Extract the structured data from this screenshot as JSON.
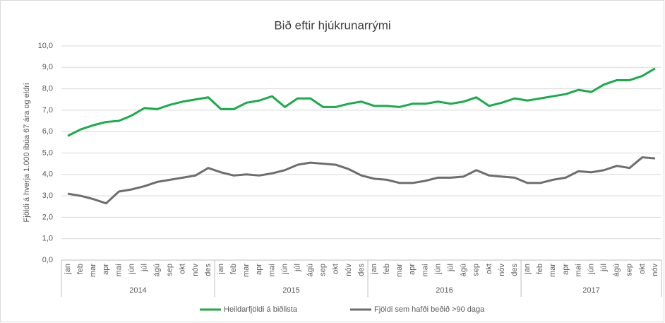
{
  "chart_data": {
    "type": "line",
    "title": "Bið eftir hjúkrunarrými",
    "y_label": "Fjöldi á hverja 1.000 íbúa 67 ára og eldri",
    "category_groups": [
      {
        "label": "2014",
        "categories": [
          "jan",
          "feb",
          "mar",
          "apr",
          "maí",
          "jún",
          "júl",
          "ágú",
          "sep",
          "okt",
          "nóv",
          "des"
        ]
      },
      {
        "label": "2015",
        "categories": [
          "jan",
          "feb",
          "mar",
          "apr",
          "maí",
          "jún",
          "júl",
          "ágú",
          "sep",
          "okt",
          "nóv",
          "des"
        ]
      },
      {
        "label": "2016",
        "categories": [
          "jan",
          "feb",
          "mar",
          "apr",
          "maí",
          "jún",
          "júl",
          "ágú",
          "sep",
          "okt",
          "nóv",
          "des"
        ]
      },
      {
        "label": "2017",
        "categories": [
          "jan",
          "feb",
          "mar",
          "apr",
          "maí",
          "jún",
          "júl",
          "ágú",
          "sep",
          "okt",
          "nóv"
        ]
      }
    ],
    "series": [
      {
        "name": "Heildarfjöldi á biðlista",
        "color": "#1aab4b",
        "values": [
          5.8,
          6.1,
          6.3,
          6.45,
          6.5,
          6.75,
          7.1,
          7.05,
          7.25,
          7.4,
          7.5,
          7.6,
          7.05,
          7.05,
          7.35,
          7.45,
          7.65,
          7.15,
          7.55,
          7.55,
          7.15,
          7.15,
          7.3,
          7.4,
          7.2,
          7.2,
          7.15,
          7.3,
          7.3,
          7.4,
          7.3,
          7.4,
          7.6,
          7.2,
          7.35,
          7.55,
          7.45,
          7.55,
          7.65,
          7.75,
          7.95,
          7.85,
          8.2,
          8.4,
          8.4,
          8.6,
          8.95
        ]
      },
      {
        "name": "Fjöldi sem hafði beðið >90 daga",
        "color": "#6d6d6d",
        "values": [
          3.1,
          3.0,
          2.85,
          2.65,
          3.2,
          3.3,
          3.45,
          3.65,
          3.75,
          3.85,
          3.95,
          4.3,
          4.1,
          3.95,
          4.0,
          3.95,
          4.05,
          4.2,
          4.45,
          4.55,
          4.5,
          4.45,
          4.25,
          3.95,
          3.8,
          3.75,
          3.6,
          3.6,
          3.7,
          3.85,
          3.85,
          3.9,
          4.2,
          3.95,
          3.9,
          3.85,
          3.6,
          3.6,
          3.75,
          3.85,
          4.15,
          4.1,
          4.2,
          4.4,
          4.3,
          4.8,
          4.75
        ]
      }
    ],
    "ylim": [
      0,
      10
    ],
    "yticks": [
      {
        "value": 0,
        "label": "0,0"
      },
      {
        "value": 1,
        "label": "1,0"
      },
      {
        "value": 2,
        "label": "2,0"
      },
      {
        "value": 3,
        "label": "3,0"
      },
      {
        "value": 4,
        "label": "4,0"
      },
      {
        "value": 5,
        "label": "5,0"
      },
      {
        "value": 6,
        "label": "6,0"
      },
      {
        "value": 7,
        "label": "7,0"
      },
      {
        "value": 8,
        "label": "8,0"
      },
      {
        "value": 9,
        "label": "9,0"
      },
      {
        "value": 10,
        "label": "10,0"
      }
    ],
    "grid": true
  }
}
